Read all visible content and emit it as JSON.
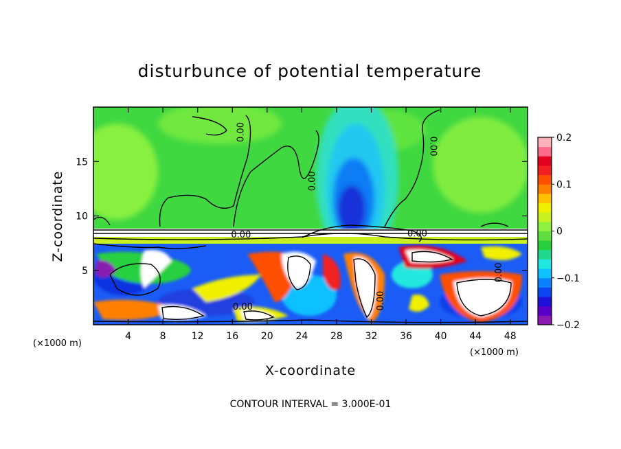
{
  "chart_data": {
    "type": "heatmap",
    "title": "disturbunce of potential temperature",
    "xlabel": "X-coordinate",
    "ylabel": "Z-coordinate",
    "x_unit_left": "(×1000 m)",
    "x_unit_right": "(×1000 m)",
    "footer": "CONTOUR INTERVAL = 3.000E-01",
    "xlim": [
      0,
      50
    ],
    "ylim": [
      0,
      20
    ],
    "x_ticks": [
      4,
      8,
      12,
      16,
      20,
      24,
      28,
      32,
      36,
      40,
      44,
      48
    ],
    "x_tick_labels": [
      "4",
      "8",
      "12",
      "16",
      "20",
      "24",
      "28",
      "32",
      "36",
      "40",
      "44",
      "48"
    ],
    "y_ticks": [
      5,
      10,
      15
    ],
    "y_tick_labels": [
      "5",
      "10",
      "15"
    ],
    "colorbar": {
      "min": -0.2,
      "max": 0.2,
      "ticks": [
        0.2,
        0.1,
        0,
        -0.1,
        -0.2
      ],
      "tick_labels": [
        "0.2",
        "0.1",
        "0",
        "−0.1",
        "−0.2"
      ],
      "colors": [
        "#8a1ab0",
        "#5a00c8",
        "#1f10d8",
        "#0a45f0",
        "#0a82ff",
        "#10c0ff",
        "#20e8e0",
        "#20d890",
        "#28d040",
        "#60e040",
        "#90f040",
        "#c8f020",
        "#f0f000",
        "#ffc000",
        "#ff8000",
        "#ff5000",
        "#f02020",
        "#e00020",
        "#ff6a8a",
        "#ffb0b8"
      ]
    },
    "contour_labels": [
      {
        "text": "0.00",
        "x": 17.3,
        "y": 17.7,
        "angle": -90
      },
      {
        "text": "0.00",
        "x": 25.5,
        "y": 13.2,
        "angle": -90
      },
      {
        "text": "0.00",
        "x": 38.8,
        "y": 16.4,
        "angle": 90
      },
      {
        "text": "0.00",
        "x": 17.0,
        "y": 8.0,
        "angle": 0
      },
      {
        "text": "0.00",
        "x": 37.3,
        "y": 8.1,
        "angle": 0
      },
      {
        "text": "0.00",
        "x": 47.0,
        "y": 4.8,
        "angle": -90
      },
      {
        "text": "0.00",
        "x": 17.2,
        "y": 1.4,
        "angle": 0
      },
      {
        "text": "0.00",
        "x": 33.4,
        "y": 2.2,
        "angle": -90
      }
    ],
    "grid": false,
    "colormap": "rainbow"
  }
}
